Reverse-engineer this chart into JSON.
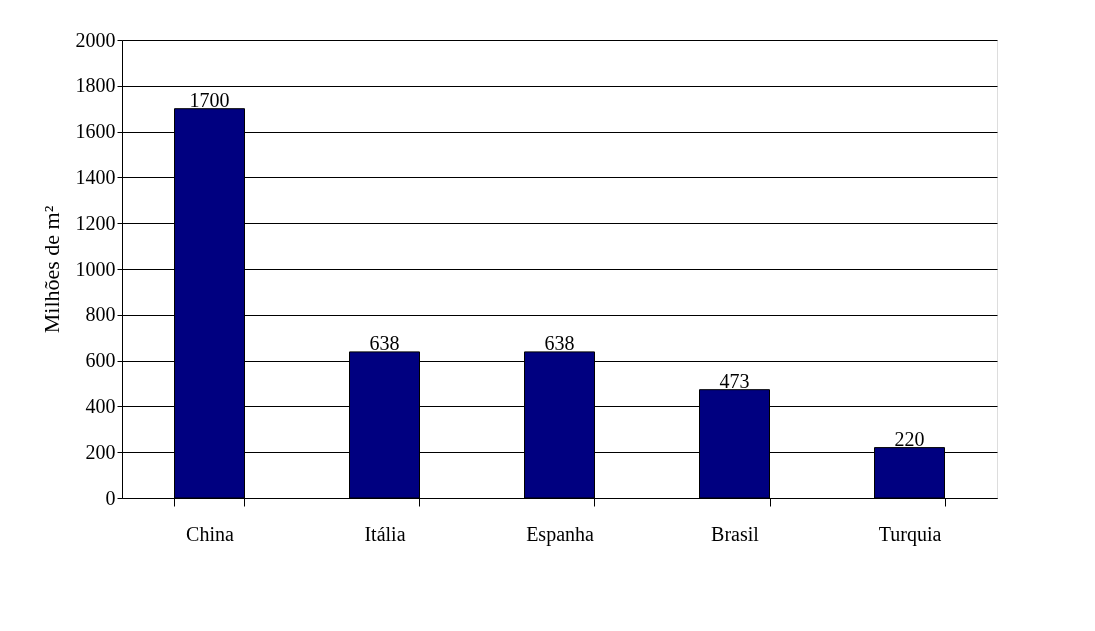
{
  "chart_data": {
    "type": "bar",
    "ylabel": "Milhões de m²",
    "categories": [
      "China",
      "Itália",
      "Espanha",
      "Brasil",
      "Turquia"
    ],
    "values": [
      1700,
      638,
      638,
      473,
      220
    ],
    "color": "#000080",
    "ylim": [
      0,
      2000
    ],
    "yticks": [
      0,
      200,
      400,
      600,
      800,
      1000,
      1200,
      1400,
      1600,
      1800,
      2000
    ],
    "grid": "y",
    "data_labels": true
  }
}
